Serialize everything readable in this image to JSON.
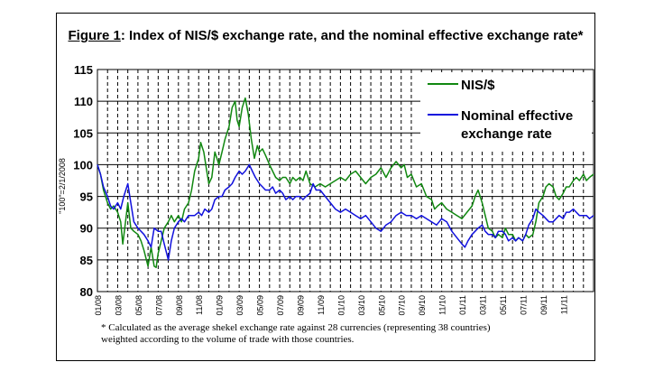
{
  "figure": {
    "label": "Figure 1",
    "title": ": Index of NIS/$ exchange rate, and the nominal effective exchange rate*",
    "footnote": "* Calculated as the average shekel exchange rate against 28 currencies (representing 38 countries) weighted according to the volume of trade with those countries."
  },
  "chart_data": {
    "type": "line",
    "title": "Index of NIS/$ exchange rate, and the nominal effective exchange rate*",
    "ylabel": "\"100\"=2/1/2008",
    "ylim": [
      80,
      115
    ],
    "yticks": [
      80,
      85,
      90,
      95,
      100,
      105,
      110,
      115
    ],
    "xlim": [
      0,
      49
    ],
    "x_ticks": [
      {
        "pos": 0,
        "label": "01/08"
      },
      {
        "pos": 2,
        "label": "03/08"
      },
      {
        "pos": 4,
        "label": "05/08"
      },
      {
        "pos": 6,
        "label": "07/08"
      },
      {
        "pos": 8,
        "label": "09/08"
      },
      {
        "pos": 10,
        "label": "11/08"
      },
      {
        "pos": 12,
        "label": "01/09"
      },
      {
        "pos": 14,
        "label": "03/09"
      },
      {
        "pos": 16,
        "label": "05/09"
      },
      {
        "pos": 18,
        "label": "07/09"
      },
      {
        "pos": 20,
        "label": "09/09"
      },
      {
        "pos": 22,
        "label": "11/09"
      },
      {
        "pos": 24,
        "label": "01/10"
      },
      {
        "pos": 26,
        "label": "03/10"
      },
      {
        "pos": 28,
        "label": "05/10"
      },
      {
        "pos": 30,
        "label": "07/10"
      },
      {
        "pos": 32,
        "label": "09/10"
      },
      {
        "pos": 34,
        "label": "11/10"
      },
      {
        "pos": 36,
        "label": "01/11"
      },
      {
        "pos": 38,
        "label": "03/11"
      },
      {
        "pos": 40,
        "label": "05/11"
      },
      {
        "pos": 42,
        "label": "07/11"
      },
      {
        "pos": 44,
        "label": "09/11"
      },
      {
        "pos": 46,
        "label": "11/11"
      }
    ],
    "grid": {
      "horizontal": true,
      "vertical_dashed": true
    },
    "legend_position": "top-right",
    "series": [
      {
        "name": "NIS/$",
        "color": "#118811",
        "points": [
          [
            0,
            100
          ],
          [
            0.3,
            98.5
          ],
          [
            0.6,
            96
          ],
          [
            1,
            94
          ],
          [
            1.3,
            93
          ],
          [
            1.6,
            93.5
          ],
          [
            2,
            92.5
          ],
          [
            2.3,
            91
          ],
          [
            2.5,
            87.5
          ],
          [
            2.7,
            90
          ],
          [
            3,
            94
          ],
          [
            3.3,
            90
          ],
          [
            3.6,
            89.5
          ],
          [
            4,
            89
          ],
          [
            4.3,
            88
          ],
          [
            4.6,
            86.5
          ],
          [
            5,
            84
          ],
          [
            5.3,
            87
          ],
          [
            5.6,
            84
          ],
          [
            5.8,
            83.8
          ],
          [
            6,
            86
          ],
          [
            6.3,
            88
          ],
          [
            6.6,
            90
          ],
          [
            7,
            91
          ],
          [
            7.3,
            92
          ],
          [
            7.6,
            91
          ],
          [
            8,
            92
          ],
          [
            8.3,
            91
          ],
          [
            8.6,
            93
          ],
          [
            9,
            94
          ],
          [
            9.3,
            96
          ],
          [
            9.6,
            99
          ],
          [
            10,
            101
          ],
          [
            10.2,
            103.5
          ],
          [
            10.5,
            102
          ],
          [
            10.8,
            99
          ],
          [
            11,
            97
          ],
          [
            11.3,
            98
          ],
          [
            11.6,
            102
          ],
          [
            12,
            100
          ],
          [
            12.3,
            102
          ],
          [
            12.6,
            104
          ],
          [
            13,
            106
          ],
          [
            13.3,
            109
          ],
          [
            13.6,
            110
          ],
          [
            13.8,
            107
          ],
          [
            14,
            106
          ],
          [
            14.3,
            109
          ],
          [
            14.6,
            110.5
          ],
          [
            14.9,
            108
          ],
          [
            15.2,
            104
          ],
          [
            15.5,
            101
          ],
          [
            15.8,
            103
          ],
          [
            16,
            102
          ],
          [
            16.3,
            102.5
          ],
          [
            16.6,
            101.5
          ],
          [
            17,
            100
          ],
          [
            17.3,
            99
          ],
          [
            17.6,
            98
          ],
          [
            18,
            97.5
          ],
          [
            18.3,
            98
          ],
          [
            18.6,
            98
          ],
          [
            19,
            97
          ],
          [
            19.3,
            98
          ],
          [
            19.6,
            97.5
          ],
          [
            20,
            98
          ],
          [
            20.3,
            97.5
          ],
          [
            20.6,
            99
          ],
          [
            21,
            97
          ],
          [
            21.5,
            96.5
          ],
          [
            22,
            97
          ],
          [
            22.5,
            96.5
          ],
          [
            23,
            97
          ],
          [
            23.5,
            97.5
          ],
          [
            24,
            98
          ],
          [
            24.5,
            97.5
          ],
          [
            25,
            98.5
          ],
          [
            25.5,
            99
          ],
          [
            26,
            98
          ],
          [
            26.5,
            97
          ],
          [
            27,
            98
          ],
          [
            27.5,
            98.5
          ],
          [
            28,
            99.5
          ],
          [
            28.5,
            98
          ],
          [
            29,
            99.5
          ],
          [
            29.5,
            100.5
          ],
          [
            30,
            99.5
          ],
          [
            30.3,
            100
          ],
          [
            30.6,
            98
          ],
          [
            31,
            98.5
          ],
          [
            31.5,
            96.5
          ],
          [
            32,
            97
          ],
          [
            32.5,
            95
          ],
          [
            33,
            94.5
          ],
          [
            33.3,
            93
          ],
          [
            33.6,
            93.5
          ],
          [
            34,
            94
          ],
          [
            34.5,
            93
          ],
          [
            35,
            92.5
          ],
          [
            35.5,
            92
          ],
          [
            36,
            91.5
          ],
          [
            36.5,
            92.5
          ],
          [
            37,
            93.5
          ],
          [
            37.3,
            95
          ],
          [
            37.6,
            96
          ],
          [
            38,
            94
          ],
          [
            38.3,
            92
          ],
          [
            38.6,
            90
          ],
          [
            39,
            89.5
          ],
          [
            39.3,
            88.5
          ],
          [
            39.6,
            89
          ],
          [
            40,
            88.5
          ],
          [
            40.3,
            90
          ],
          [
            40.6,
            89
          ],
          [
            41,
            89
          ],
          [
            41.3,
            88
          ],
          [
            41.6,
            88.5
          ],
          [
            42,
            88
          ],
          [
            42.3,
            89
          ],
          [
            42.6,
            88.5
          ],
          [
            43,
            89
          ],
          [
            43.3,
            91
          ],
          [
            43.6,
            94
          ],
          [
            44,
            95
          ],
          [
            44.3,
            96.5
          ],
          [
            44.6,
            97
          ],
          [
            45,
            96.5
          ],
          [
            45.3,
            95
          ],
          [
            45.6,
            94.5
          ],
          [
            46,
            95.5
          ],
          [
            46.3,
            96.5
          ],
          [
            46.6,
            96.5
          ],
          [
            47,
            97.5
          ],
          [
            47.3,
            98
          ],
          [
            47.6,
            97.5
          ],
          [
            48,
            98.5
          ],
          [
            48.3,
            97.5
          ],
          [
            48.6,
            98
          ],
          [
            49,
            98.5
          ]
        ]
      },
      {
        "name": "Nominal effective exchange rate",
        "color": "#1111dd",
        "points": [
          [
            0,
            100
          ],
          [
            0.3,
            98.5
          ],
          [
            0.6,
            96.5
          ],
          [
            1,
            95
          ],
          [
            1.3,
            93.5
          ],
          [
            1.6,
            93
          ],
          [
            2,
            94
          ],
          [
            2.3,
            93
          ],
          [
            2.6,
            95
          ],
          [
            3,
            97
          ],
          [
            3.3,
            94
          ],
          [
            3.6,
            91
          ],
          [
            4,
            90
          ],
          [
            4.3,
            89.5
          ],
          [
            4.6,
            89
          ],
          [
            5,
            88
          ],
          [
            5.3,
            87
          ],
          [
            5.6,
            90
          ],
          [
            6,
            89.5
          ],
          [
            6.3,
            89.5
          ],
          [
            6.6,
            87.5
          ],
          [
            7,
            85
          ],
          [
            7.3,
            88
          ],
          [
            7.6,
            90
          ],
          [
            8,
            91
          ],
          [
            8.3,
            91.5
          ],
          [
            8.6,
            91
          ],
          [
            9,
            92
          ],
          [
            9.3,
            92
          ],
          [
            9.6,
            92
          ],
          [
            10,
            92.5
          ],
          [
            10.3,
            92
          ],
          [
            10.6,
            93
          ],
          [
            11,
            92.5
          ],
          [
            11.3,
            93
          ],
          [
            11.6,
            94.5
          ],
          [
            12,
            95
          ],
          [
            12.3,
            95
          ],
          [
            12.6,
            96
          ],
          [
            13,
            96.5
          ],
          [
            13.3,
            97
          ],
          [
            13.6,
            98
          ],
          [
            14,
            99
          ],
          [
            14.3,
            98.5
          ],
          [
            14.6,
            99
          ],
          [
            15,
            100
          ],
          [
            15.3,
            99
          ],
          [
            15.6,
            98
          ],
          [
            16,
            97
          ],
          [
            16.3,
            96.5
          ],
          [
            16.6,
            96
          ],
          [
            17,
            96
          ],
          [
            17.3,
            96.5
          ],
          [
            17.6,
            95.5
          ],
          [
            18,
            96
          ],
          [
            18.3,
            95.5
          ],
          [
            18.6,
            94.5
          ],
          [
            19,
            95
          ],
          [
            19.3,
            94.5
          ],
          [
            19.6,
            95
          ],
          [
            20,
            95
          ],
          [
            20.3,
            94.5
          ],
          [
            20.6,
            95
          ],
          [
            21,
            95.5
          ],
          [
            21.3,
            97
          ],
          [
            21.6,
            96
          ],
          [
            22,
            96
          ],
          [
            22.5,
            95
          ],
          [
            23,
            94
          ],
          [
            23.5,
            93
          ],
          [
            24,
            92.5
          ],
          [
            24.5,
            93
          ],
          [
            25,
            92.5
          ],
          [
            25.5,
            92
          ],
          [
            26,
            91.5
          ],
          [
            26.5,
            92
          ],
          [
            27,
            91
          ],
          [
            27.5,
            90
          ],
          [
            28,
            89.5
          ],
          [
            28.5,
            90.5
          ],
          [
            29,
            91
          ],
          [
            29.5,
            92
          ],
          [
            30,
            92.5
          ],
          [
            30.5,
            92
          ],
          [
            31,
            92
          ],
          [
            31.5,
            91.5
          ],
          [
            32,
            92
          ],
          [
            32.5,
            91.5
          ],
          [
            33,
            91
          ],
          [
            33.5,
            90.5
          ],
          [
            34,
            91.5
          ],
          [
            34.5,
            91
          ],
          [
            35,
            89.5
          ],
          [
            35.5,
            88.5
          ],
          [
            36,
            87.5
          ],
          [
            36.3,
            87
          ],
          [
            36.6,
            88
          ],
          [
            37,
            89
          ],
          [
            37.3,
            89.5
          ],
          [
            37.6,
            90
          ],
          [
            38,
            90.5
          ],
          [
            38.3,
            89.5
          ],
          [
            38.6,
            89
          ],
          [
            39,
            89
          ],
          [
            39.3,
            88.5
          ],
          [
            39.6,
            89.5
          ],
          [
            40,
            89.5
          ],
          [
            40.3,
            89
          ],
          [
            40.6,
            88
          ],
          [
            41,
            88.5
          ],
          [
            41.3,
            88
          ],
          [
            41.6,
            88.5
          ],
          [
            42,
            88
          ],
          [
            42.3,
            89
          ],
          [
            42.6,
            90.5
          ],
          [
            43,
            91.5
          ],
          [
            43.3,
            93
          ],
          [
            43.6,
            92.5
          ],
          [
            44,
            92
          ],
          [
            44.3,
            91.5
          ],
          [
            44.6,
            91
          ],
          [
            45,
            91
          ],
          [
            45.3,
            91.5
          ],
          [
            45.6,
            92
          ],
          [
            46,
            91.5
          ],
          [
            46.3,
            92.5
          ],
          [
            46.6,
            92.5
          ],
          [
            47,
            93
          ],
          [
            47.3,
            92.5
          ],
          [
            47.6,
            92
          ],
          [
            48,
            92
          ],
          [
            48.3,
            92
          ],
          [
            48.6,
            91.5
          ],
          [
            49,
            92
          ]
        ]
      }
    ]
  }
}
